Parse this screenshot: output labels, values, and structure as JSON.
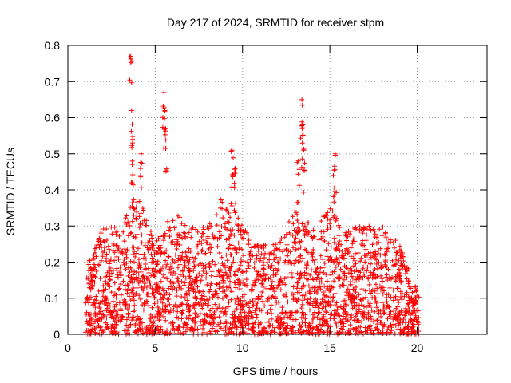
{
  "chart_data": {
    "type": "scatter",
    "title": "Day 217 of 2024, SRMTID for receiver stpm",
    "xlabel": "GPS time / hours",
    "ylabel": "SRMTID / TECUs",
    "xlim": [
      0,
      24
    ],
    "ylim": [
      0,
      0.8
    ],
    "xticks": [
      0,
      5,
      10,
      15,
      20
    ],
    "yticks": [
      0,
      0.1,
      0.2,
      0.3,
      0.4,
      0.5,
      0.6,
      0.7,
      0.8
    ],
    "grid": true,
    "marker": "+",
    "color": "#ff0000",
    "time_range": [
      1.0,
      20.1
    ],
    "approx_point_count": 2600,
    "peaks": [
      {
        "x": 3.6,
        "y": 0.77
      },
      {
        "x": 3.65,
        "y": 0.62
      },
      {
        "x": 3.7,
        "y": 0.53
      },
      {
        "x": 4.2,
        "y": 0.5
      },
      {
        "x": 5.5,
        "y": 0.67
      },
      {
        "x": 5.55,
        "y": 0.62
      },
      {
        "x": 5.6,
        "y": 0.57
      },
      {
        "x": 9.4,
        "y": 0.51
      },
      {
        "x": 9.6,
        "y": 0.46
      },
      {
        "x": 13.4,
        "y": 0.65
      },
      {
        "x": 13.45,
        "y": 0.58
      },
      {
        "x": 13.5,
        "y": 0.51
      },
      {
        "x": 13.2,
        "y": 0.48
      },
      {
        "x": 15.3,
        "y": 0.5
      },
      {
        "x": 15.2,
        "y": 0.44
      }
    ],
    "activity_envelope": [
      {
        "hour": 1,
        "typical_max": 0.18
      },
      {
        "hour": 2,
        "typical_max": 0.3
      },
      {
        "hour": 3,
        "typical_max": 0.3
      },
      {
        "hour": 4,
        "typical_max": 0.4
      },
      {
        "hour": 5,
        "typical_max": 0.25
      },
      {
        "hour": 6,
        "typical_max": 0.35
      },
      {
        "hour": 7,
        "typical_max": 0.3
      },
      {
        "hour": 8,
        "typical_max": 0.3
      },
      {
        "hour": 9,
        "typical_max": 0.4
      },
      {
        "hour": 10,
        "typical_max": 0.3
      },
      {
        "hour": 11,
        "typical_max": 0.25
      },
      {
        "hour": 12,
        "typical_max": 0.25
      },
      {
        "hour": 13,
        "typical_max": 0.35
      },
      {
        "hour": 14,
        "typical_max": 0.3
      },
      {
        "hour": 15,
        "typical_max": 0.35
      },
      {
        "hour": 16,
        "typical_max": 0.3
      },
      {
        "hour": 17,
        "typical_max": 0.3
      },
      {
        "hour": 18,
        "typical_max": 0.3
      },
      {
        "hour": 19,
        "typical_max": 0.25
      },
      {
        "hour": 20,
        "typical_max": 0.12
      }
    ]
  }
}
